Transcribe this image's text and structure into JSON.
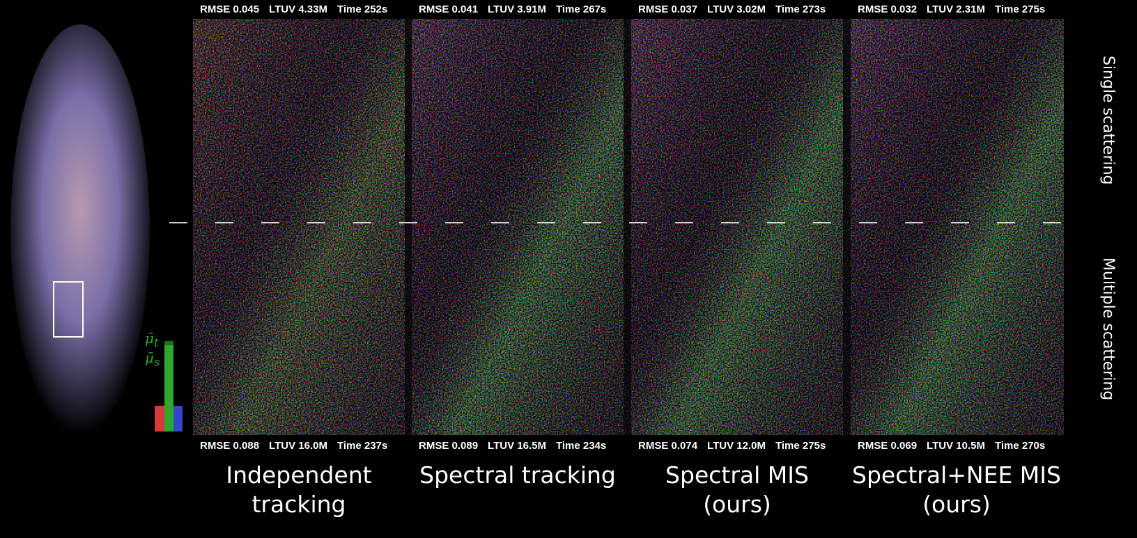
{
  "figure": {
    "panels": [
      {
        "top": [
          "RMSE 0.045",
          "LTUV 4.33M",
          "Time 252s"
        ],
        "bottom": [
          "RMSE 0.088",
          "LTUV 16.0M",
          "Time 237s"
        ],
        "caption": [
          "Independent",
          "tracking"
        ]
      },
      {
        "top": [
          "RMSE 0.041",
          "LTUV 3.91M",
          "Time 267s"
        ],
        "bottom": [
          "RMSE 0.089",
          "LTUV 16.5M",
          "Time 234s"
        ],
        "caption": [
          "Spectral tracking"
        ]
      },
      {
        "top": [
          "RMSE 0.037",
          "LTUV 3.02M",
          "Time 273s"
        ],
        "bottom": [
          "RMSE 0.074",
          "LTUV 12.0M",
          "Time 275s"
        ],
        "caption": [
          "Spectral MIS",
          "(ours)"
        ]
      },
      {
        "top": [
          "RMSE 0.032",
          "LTUV 2.31M",
          "Time 275s"
        ],
        "bottom": [
          "RMSE 0.069",
          "LTUV 10.5M",
          "Time 270s"
        ],
        "caption": [
          "Spectral+NEE  MIS",
          "(ours)"
        ]
      }
    ],
    "row_labels": [
      "Single scattering",
      "Multiple scattering"
    ],
    "legend": [
      {
        "symbol": "μ̄",
        "subscript": "t"
      },
      {
        "symbol": "μ̄",
        "subscript": "s"
      }
    ]
  }
}
